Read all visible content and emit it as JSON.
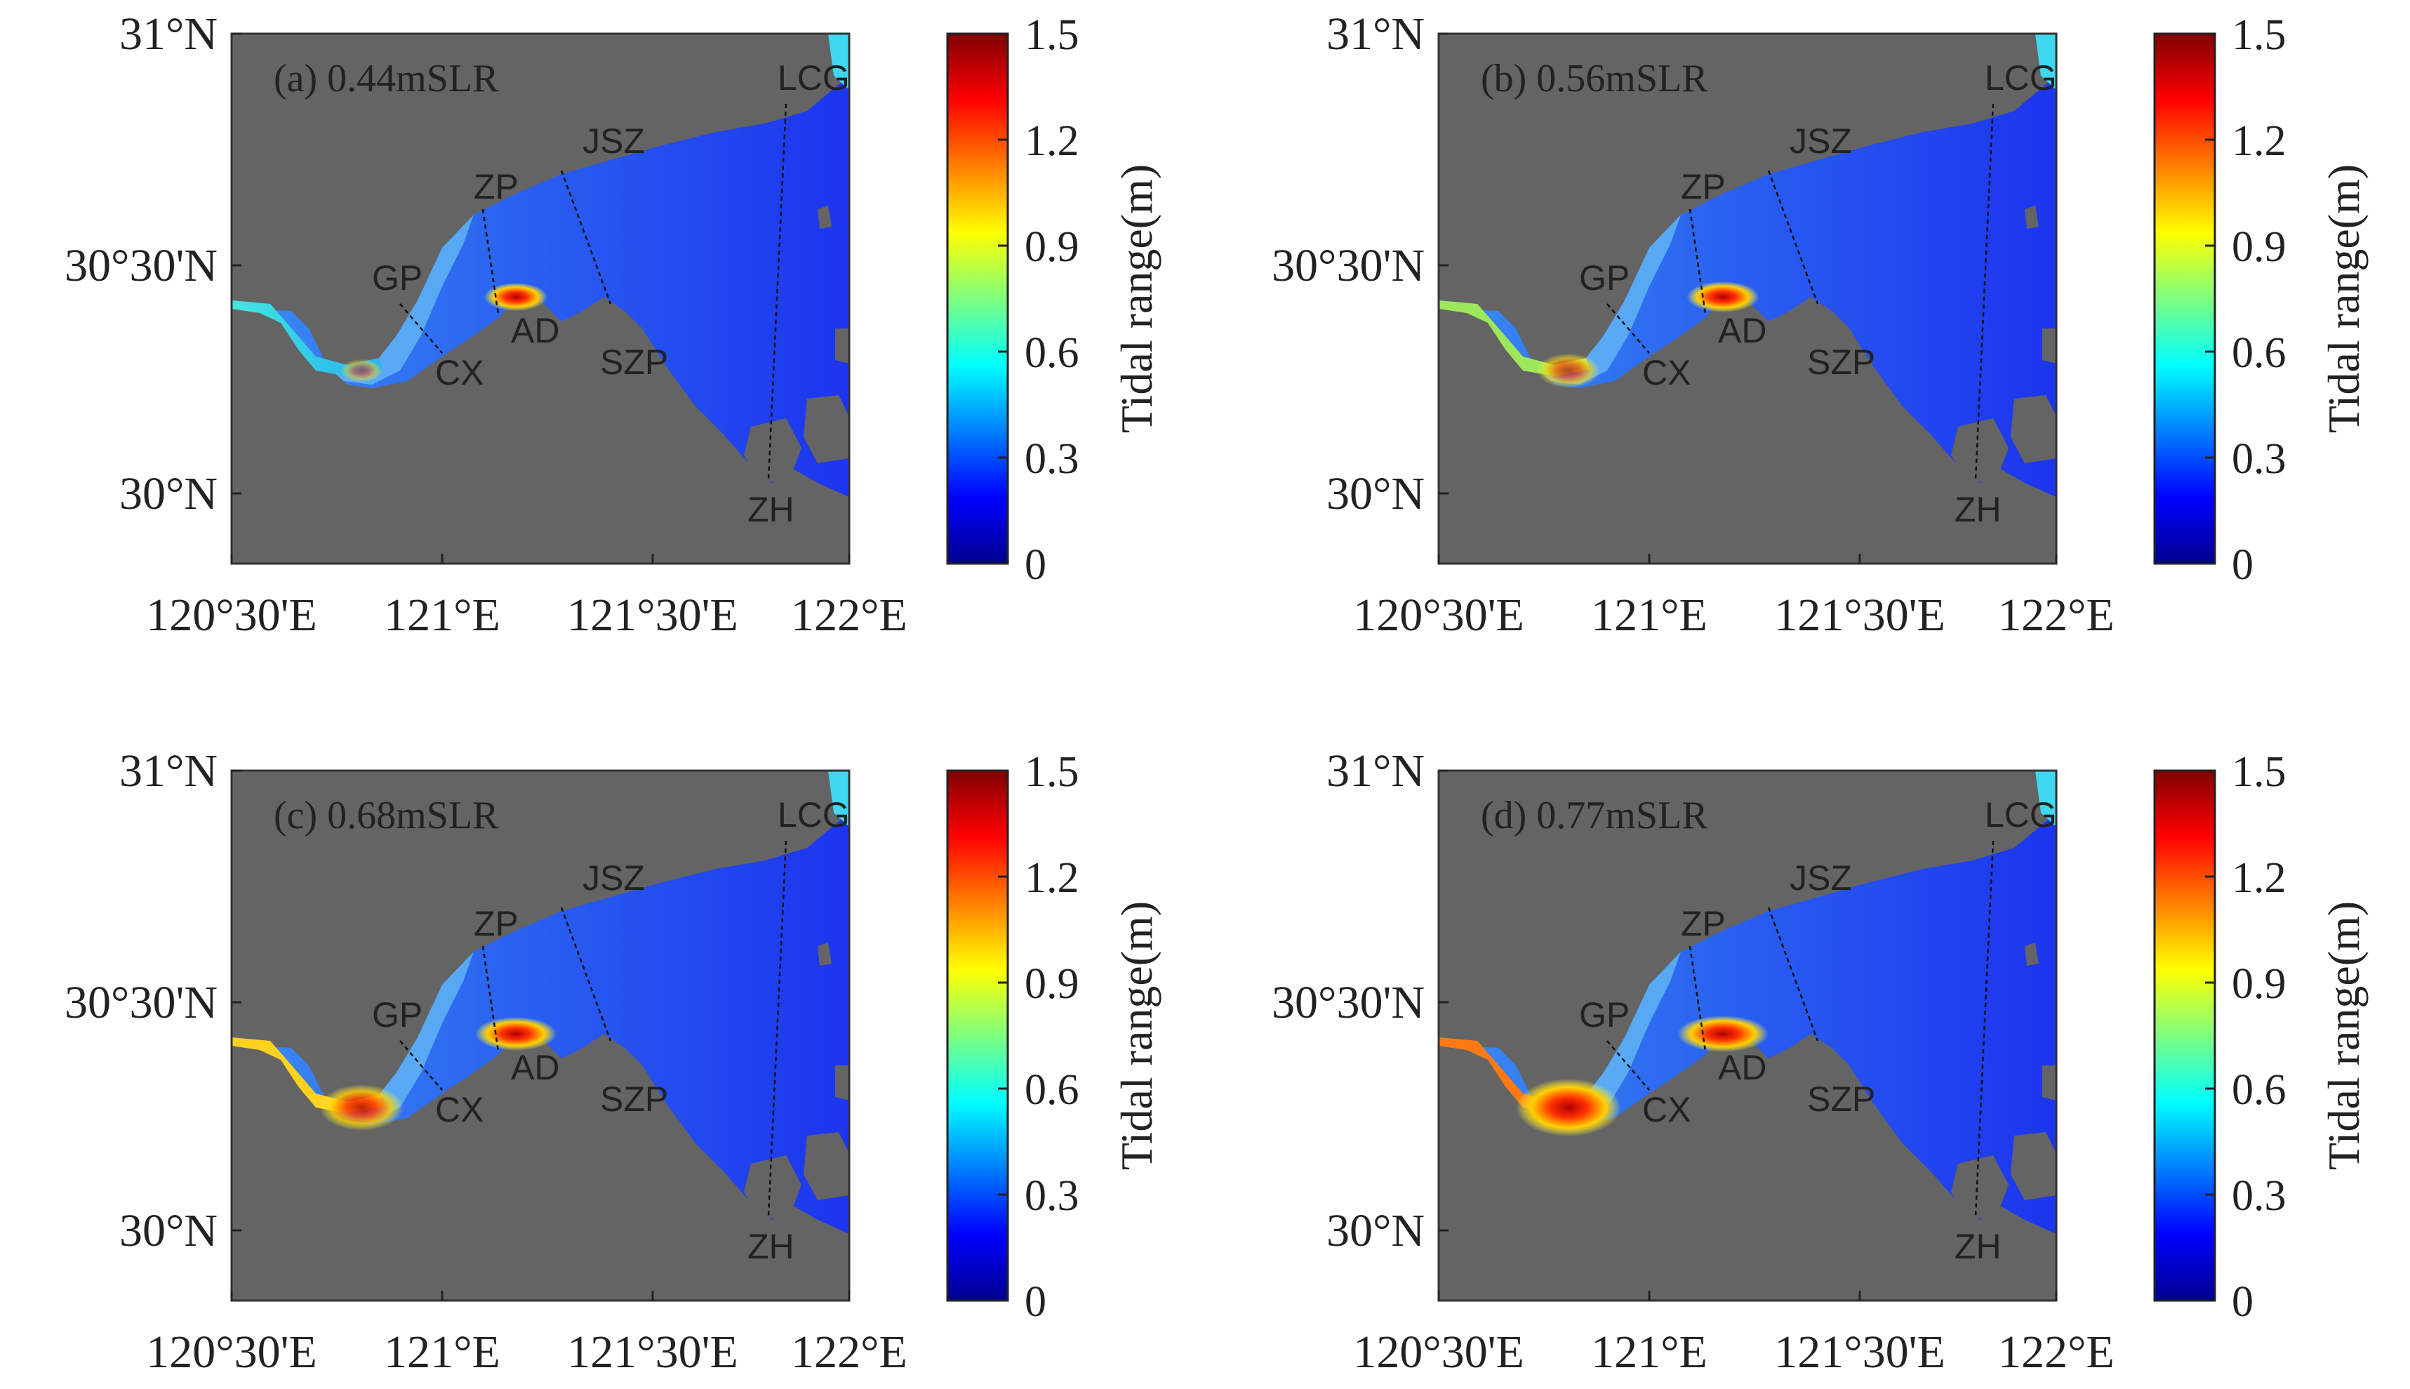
{
  "figure": {
    "panels": [
      {
        "id": "a",
        "title": "(a) 0.44mSLR",
        "intensity": 0.0
      },
      {
        "id": "b",
        "title": "(b) 0.56mSLR",
        "intensity": 0.33
      },
      {
        "id": "c",
        "title": "(c) 0.68mSLR",
        "intensity": 0.66
      },
      {
        "id": "d",
        "title": "(d) 0.77mSLR",
        "intensity": 1.0
      }
    ],
    "x_ticks": [
      "120°30'E",
      "121°E",
      "121°30'E",
      "122°E"
    ],
    "y_ticks": [
      "31°N",
      "30°30'N",
      "30°N"
    ],
    "stations": [
      "LCG",
      "JSZ",
      "ZP",
      "GP",
      "AD",
      "SZP",
      "CX",
      "ZH"
    ],
    "colorbar": {
      "label": "Tidal range(m)",
      "ticks": [
        "1.5",
        "1.2",
        "0.9",
        "0.6",
        "0.3",
        "0"
      ],
      "range": [
        0,
        1.5
      ],
      "colormap": "jet"
    }
  },
  "colors": {
    "land": "#646464",
    "water_base": "#2a5cf0",
    "water_outer": "#1c34ee",
    "water_mid": "#3a8cf4",
    "frame": "#333333"
  }
}
